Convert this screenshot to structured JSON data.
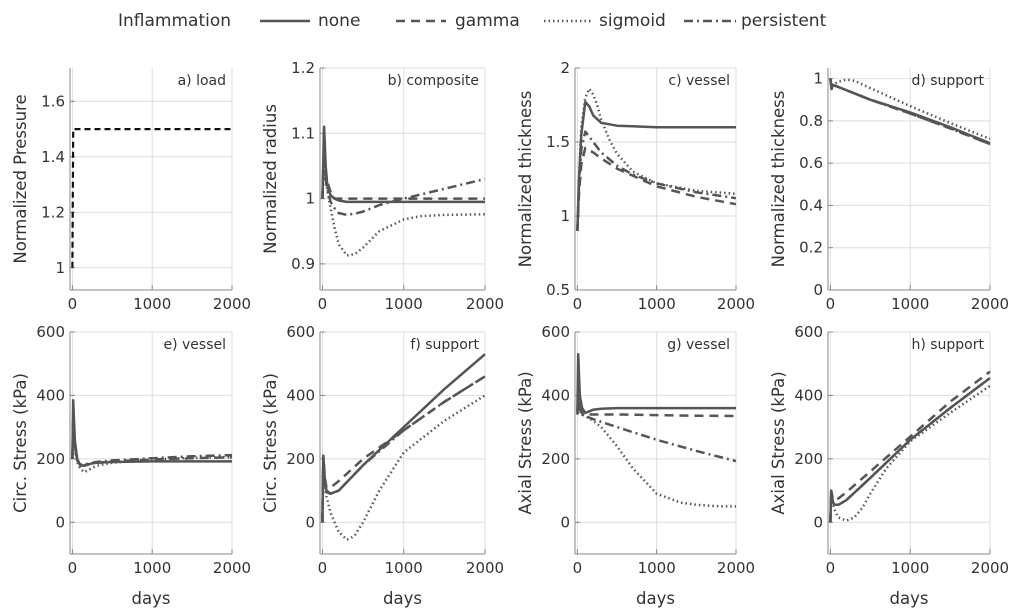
{
  "legend": {
    "title": "Inflammation",
    "entries": [
      {
        "label": "none",
        "style": "solid"
      },
      {
        "label": "gamma",
        "style": "dashed"
      },
      {
        "label": "sigmoid",
        "style": "dotted"
      },
      {
        "label": "persistent",
        "style": "dashdot"
      }
    ]
  },
  "colors": {
    "line": "#555555",
    "load": "#111111",
    "grid": "#dedede",
    "axis": "#888888",
    "text": "#333333"
  },
  "chart_data": [
    {
      "type": "line",
      "title": "a) load",
      "xlabel": "",
      "ylabel": "Normalized Pressure",
      "xlim": [
        -30,
        2000
      ],
      "ylim": [
        0.92,
        1.72
      ],
      "xticks": [
        0,
        1000,
        2000
      ],
      "xtick_labels": [
        "0",
        "1000",
        "2000"
      ],
      "yticks": [
        1,
        1.2,
        1.4,
        1.6
      ],
      "ytick_labels": [
        "1",
        "1.2",
        "1.4",
        "1.6"
      ],
      "grid": true,
      "series": [
        {
          "style": "dashed",
          "x": [
            0,
            10,
            20,
            2000
          ],
          "y": [
            1.0,
            1.5,
            1.5,
            1.5
          ]
        }
      ]
    },
    {
      "type": "line",
      "title": "b) composite",
      "xlabel": "",
      "ylabel": "Normalized  radius",
      "xlim": [
        -30,
        2000
      ],
      "ylim": [
        0.86,
        1.2
      ],
      "xticks": [
        0,
        1000,
        2000
      ],
      "xtick_labels": [
        "0",
        "1000",
        "2000"
      ],
      "yticks": [
        0.9,
        1,
        1.1,
        1.2
      ],
      "ytick_labels": [
        "0.9",
        "1",
        "1.1",
        "1.2"
      ],
      "grid": true,
      "series": [
        {
          "name": "none",
          "style": "solid",
          "x": [
            0,
            20,
            40,
            60,
            100,
            150,
            200,
            300,
            400,
            500,
            1000,
            1500,
            2000
          ],
          "y": [
            1.0,
            1.11,
            1.05,
            1.02,
            1.005,
            1.0,
            0.997,
            0.995,
            0.995,
            0.995,
            0.995,
            0.995,
            0.995
          ]
        },
        {
          "name": "gamma",
          "style": "dashed",
          "x": [
            0,
            20,
            50,
            100,
            150,
            200,
            300,
            500,
            1000,
            1500,
            2000
          ],
          "y": [
            1.0,
            1.08,
            1.03,
            1.01,
            1.0,
            1.0,
            1.0,
            1.0,
            1.0,
            1.0,
            1.0
          ]
        },
        {
          "name": "sigmoid",
          "style": "dotted",
          "x": [
            0,
            20,
            50,
            100,
            150,
            200,
            300,
            400,
            500,
            700,
            1000,
            1200,
            1500,
            2000
          ],
          "y": [
            1.0,
            1.06,
            1.02,
            0.985,
            0.955,
            0.93,
            0.913,
            0.915,
            0.925,
            0.95,
            0.968,
            0.973,
            0.975,
            0.976
          ]
        },
        {
          "name": "persistent",
          "style": "dashdot",
          "x": [
            0,
            20,
            50,
            100,
            150,
            200,
            300,
            400,
            500,
            700,
            1000,
            1500,
            2000
          ],
          "y": [
            1.0,
            1.06,
            1.02,
            0.995,
            0.985,
            0.978,
            0.975,
            0.977,
            0.98,
            0.99,
            1.0,
            1.015,
            1.03
          ]
        }
      ]
    },
    {
      "type": "line",
      "title": "c) vessel",
      "xlabel": "",
      "ylabel": "Normalized thickness",
      "xlim": [
        -30,
        2000
      ],
      "ylim": [
        0.5,
        2.0
      ],
      "xticks": [
        0,
        1000,
        2000
      ],
      "xtick_labels": [
        "0",
        "1000",
        "2000"
      ],
      "yticks": [
        0.5,
        1,
        1.5,
        2
      ],
      "ytick_labels": [
        "0.5",
        "1",
        "1.5",
        "2"
      ],
      "grid": true,
      "series": [
        {
          "name": "none",
          "style": "solid",
          "x": [
            0,
            20,
            50,
            100,
            150,
            200,
            300,
            500,
            1000,
            2000
          ],
          "y": [
            0.9,
            1.25,
            1.55,
            1.77,
            1.74,
            1.68,
            1.63,
            1.61,
            1.6,
            1.6
          ]
        },
        {
          "name": "gamma",
          "style": "dashed",
          "x": [
            0,
            20,
            50,
            100,
            200,
            300,
            500,
            1000,
            1500,
            2000
          ],
          "y": [
            0.9,
            1.15,
            1.35,
            1.46,
            1.43,
            1.39,
            1.32,
            1.2,
            1.13,
            1.08
          ]
        },
        {
          "name": "sigmoid",
          "style": "dotted",
          "x": [
            0,
            20,
            50,
            100,
            150,
            200,
            250,
            300,
            400,
            500,
            700,
            1000,
            1500,
            2000
          ],
          "y": [
            0.9,
            1.25,
            1.6,
            1.8,
            1.86,
            1.82,
            1.75,
            1.65,
            1.52,
            1.42,
            1.3,
            1.22,
            1.17,
            1.15
          ]
        },
        {
          "name": "persistent",
          "style": "dashdot",
          "x": [
            0,
            20,
            50,
            100,
            200,
            300,
            500,
            700,
            1000,
            1500,
            2000
          ],
          "y": [
            0.9,
            1.2,
            1.45,
            1.57,
            1.5,
            1.43,
            1.34,
            1.28,
            1.22,
            1.16,
            1.12
          ]
        }
      ]
    },
    {
      "type": "line",
      "title": "d) support",
      "xlabel": "",
      "ylabel": "Normalized thickness",
      "xlim": [
        -30,
        2000
      ],
      "ylim": [
        0,
        1.05
      ],
      "xticks": [
        0,
        1000,
        2000
      ],
      "xtick_labels": [
        "0",
        "1000",
        "2000"
      ],
      "yticks": [
        0,
        0.2,
        0.4,
        0.6,
        0.8,
        1
      ],
      "ytick_labels": [
        "0",
        "0.2",
        "0.4",
        "0.6",
        "0.8",
        "1"
      ],
      "grid": true,
      "series": [
        {
          "name": "none",
          "style": "solid",
          "x": [
            0,
            15,
            30,
            100,
            500,
            1000,
            1500,
            2000
          ],
          "y": [
            1.0,
            0.95,
            0.97,
            0.96,
            0.9,
            0.84,
            0.77,
            0.695
          ]
        },
        {
          "name": "gamma",
          "style": "dashed",
          "x": [
            0,
            15,
            30,
            100,
            500,
            1000,
            1500,
            2000
          ],
          "y": [
            1.0,
            0.95,
            0.97,
            0.96,
            0.9,
            0.835,
            0.765,
            0.69
          ]
        },
        {
          "name": "sigmoid",
          "style": "dotted",
          "x": [
            0,
            15,
            30,
            100,
            200,
            300,
            500,
            1000,
            1500,
            2000
          ],
          "y": [
            1.0,
            0.95,
            0.97,
            0.985,
            0.995,
            0.99,
            0.955,
            0.87,
            0.79,
            0.715
          ]
        },
        {
          "name": "persistent",
          "style": "dashdot",
          "x": [
            0,
            15,
            30,
            100,
            500,
            1000,
            1500,
            2000
          ],
          "y": [
            1.0,
            0.95,
            0.97,
            0.96,
            0.9,
            0.835,
            0.765,
            0.69
          ]
        }
      ]
    },
    {
      "type": "line",
      "title": "e) vessel",
      "xlabel": "days",
      "ylabel": "Circ. Stress  (kPa)",
      "xlim": [
        -30,
        2000
      ],
      "ylim": [
        -100,
        600
      ],
      "xticks": [
        0,
        1000,
        2000
      ],
      "xtick_labels": [
        "0",
        "1000",
        "2000"
      ],
      "yticks": [
        0,
        200,
        400,
        600
      ],
      "ytick_labels": [
        "0",
        "200",
        "400",
        "600"
      ],
      "grid": true,
      "series": [
        {
          "name": "none",
          "style": "solid",
          "x": [
            0,
            10,
            30,
            60,
            100,
            150,
            200,
            300,
            500,
            1000,
            1500,
            2000
          ],
          "y": [
            200,
            385,
            260,
            200,
            178,
            180,
            183,
            188,
            190,
            192,
            192,
            192
          ]
        },
        {
          "name": "gamma",
          "style": "dashed",
          "x": [
            0,
            10,
            30,
            60,
            100,
            150,
            200,
            300,
            500,
            1000,
            1500,
            2000
          ],
          "y": [
            200,
            330,
            240,
            195,
            180,
            178,
            182,
            188,
            192,
            198,
            202,
            205
          ]
        },
        {
          "name": "sigmoid",
          "style": "dotted",
          "x": [
            0,
            10,
            30,
            60,
            100,
            150,
            200,
            300,
            500,
            1000,
            1500,
            2000
          ],
          "y": [
            200,
            300,
            230,
            190,
            168,
            158,
            165,
            178,
            188,
            198,
            203,
            206
          ]
        },
        {
          "name": "persistent",
          "style": "dashdot",
          "x": [
            0,
            10,
            30,
            60,
            100,
            150,
            200,
            300,
            500,
            1000,
            1500,
            2000
          ],
          "y": [
            200,
            320,
            235,
            195,
            182,
            182,
            185,
            190,
            195,
            202,
            208,
            212
          ]
        }
      ]
    },
    {
      "type": "line",
      "title": "f) support",
      "xlabel": "days",
      "ylabel": "Circ. Stress  (kPa)",
      "xlim": [
        -30,
        2000
      ],
      "ylim": [
        -100,
        600
      ],
      "xticks": [
        0,
        1000,
        2000
      ],
      "xtick_labels": [
        "0",
        "1000",
        "2000"
      ],
      "yticks": [
        0,
        200,
        400,
        600
      ],
      "ytick_labels": [
        "0",
        "200",
        "400",
        "600"
      ],
      "grid": true,
      "series": [
        {
          "name": "none",
          "style": "solid",
          "x": [
            0,
            10,
            30,
            50,
            100,
            200,
            500,
            1000,
            1500,
            2000
          ],
          "y": [
            0,
            210,
            130,
            100,
            90,
            100,
            180,
            300,
            420,
            530
          ]
        },
        {
          "name": "gamma",
          "style": "dashed",
          "x": [
            0,
            10,
            30,
            50,
            100,
            200,
            500,
            1000,
            1500,
            2000
          ],
          "y": [
            0,
            210,
            140,
            110,
            110,
            130,
            200,
            290,
            380,
            460
          ]
        },
        {
          "name": "sigmoid",
          "style": "dotted",
          "x": [
            0,
            10,
            30,
            50,
            100,
            200,
            300,
            350,
            400,
            500,
            700,
            1000,
            1500,
            2000
          ],
          "y": [
            0,
            190,
            110,
            80,
            30,
            -30,
            -55,
            -50,
            -40,
            0,
            100,
            220,
            320,
            400
          ]
        },
        {
          "name": "persistent",
          "style": "dashdot",
          "x": [
            0,
            10,
            30,
            50,
            100,
            200,
            500,
            1000,
            1500,
            2000
          ],
          "y": [
            0,
            200,
            120,
            95,
            90,
            100,
            180,
            290,
            380,
            460
          ]
        }
      ]
    },
    {
      "type": "line",
      "title": "g) vessel",
      "xlabel": "days",
      "ylabel": "Axial  Stress  (kPa)",
      "xlim": [
        -30,
        2000
      ],
      "ylim": [
        -100,
        600
      ],
      "xticks": [
        0,
        1000,
        2000
      ],
      "xtick_labels": [
        "0",
        "1000",
        "2000"
      ],
      "yticks": [
        0,
        200,
        400,
        600
      ],
      "ytick_labels": [
        "0",
        "200",
        "400",
        "600"
      ],
      "grid": true,
      "series": [
        {
          "name": "none",
          "style": "solid",
          "x": [
            0,
            10,
            30,
            60,
            100,
            150,
            200,
            300,
            500,
            1000,
            1500,
            2000
          ],
          "y": [
            350,
            530,
            400,
            360,
            345,
            350,
            355,
            358,
            360,
            360,
            360,
            360
          ]
        },
        {
          "name": "gamma",
          "style": "dashed",
          "x": [
            0,
            10,
            30,
            60,
            100,
            200,
            500,
            1000,
            1500,
            2000
          ],
          "y": [
            340,
            400,
            360,
            345,
            340,
            340,
            340,
            338,
            336,
            335
          ]
        },
        {
          "name": "sigmoid",
          "style": "dotted",
          "x": [
            0,
            10,
            30,
            60,
            100,
            200,
            300,
            500,
            700,
            1000,
            1300,
            1500,
            1800,
            2000
          ],
          "y": [
            340,
            380,
            350,
            340,
            335,
            320,
            300,
            240,
            170,
            90,
            62,
            55,
            50,
            50
          ]
        },
        {
          "name": "persistent",
          "style": "dashdot",
          "x": [
            0,
            10,
            30,
            60,
            100,
            200,
            500,
            1000,
            1500,
            2000
          ],
          "y": [
            340,
            390,
            355,
            340,
            335,
            325,
            300,
            260,
            225,
            193
          ]
        }
      ]
    },
    {
      "type": "line",
      "title": "h) support",
      "xlabel": "days",
      "ylabel": "Axial  Stress  (kPa)",
      "xlim": [
        -30,
        2000
      ],
      "ylim": [
        -100,
        600
      ],
      "xticks": [
        0,
        1000,
        2000
      ],
      "xtick_labels": [
        "0",
        "1000",
        "2000"
      ],
      "yticks": [
        0,
        200,
        400,
        600
      ],
      "ytick_labels": [
        "0",
        "200",
        "400",
        "600"
      ],
      "grid": true,
      "series": [
        {
          "name": "none",
          "style": "solid",
          "x": [
            0,
            10,
            30,
            50,
            100,
            200,
            500,
            1000,
            1500,
            2000
          ],
          "y": [
            0,
            100,
            65,
            55,
            55,
            70,
            140,
            260,
            360,
            455
          ]
        },
        {
          "name": "gamma",
          "style": "dashed",
          "x": [
            0,
            10,
            30,
            50,
            100,
            200,
            500,
            1000,
            1500,
            2000
          ],
          "y": [
            0,
            100,
            75,
            70,
            75,
            95,
            160,
            270,
            380,
            475
          ]
        },
        {
          "name": "sigmoid",
          "style": "dotted",
          "x": [
            0,
            10,
            30,
            50,
            100,
            200,
            300,
            400,
            500,
            700,
            1000,
            1500,
            2000
          ],
          "y": [
            0,
            90,
            60,
            40,
            15,
            5,
            15,
            45,
            90,
            170,
            255,
            345,
            430
          ]
        },
        {
          "name": "persistent",
          "style": "dashdot",
          "x": [
            0,
            10,
            30,
            50,
            100,
            200,
            500,
            1000,
            1500,
            2000
          ],
          "y": [
            0,
            95,
            65,
            55,
            55,
            70,
            140,
            260,
            360,
            455
          ]
        }
      ]
    }
  ]
}
